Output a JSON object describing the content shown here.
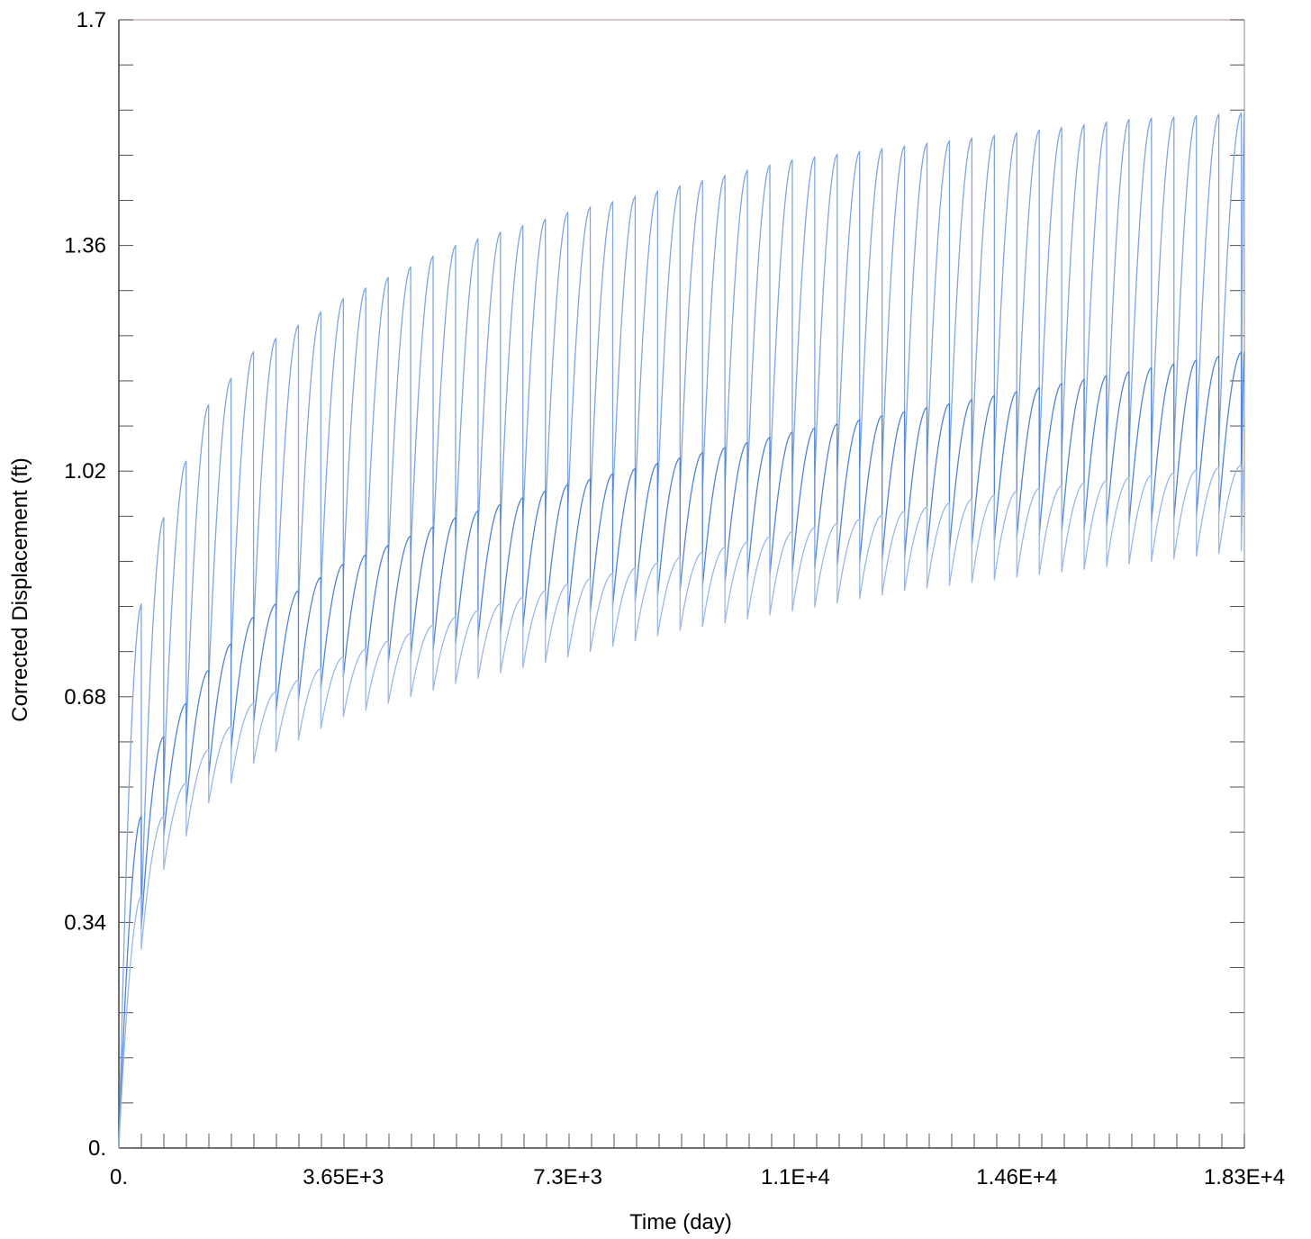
{
  "chart_data": {
    "type": "line",
    "title": "",
    "xlabel": "Time (day)",
    "ylabel": "Corrected Displacement (ft)",
    "xlim": [
      0,
      18300
    ],
    "ylim": [
      0,
      1.7
    ],
    "xticks": [
      0,
      3650,
      7300,
      11000,
      14600,
      18300
    ],
    "xtick_labels": [
      "0.",
      "3.65E+3",
      "7.3E+3",
      "1.1E+4",
      "1.46E+4",
      "1.83E+4"
    ],
    "yticks": [
      0,
      0.34,
      0.68,
      1.02,
      1.36,
      1.7
    ],
    "ytick_labels": [
      "0.",
      "0.34",
      "0.68",
      "1.02",
      "1.36",
      "1.7"
    ],
    "grid": false,
    "legend": "none",
    "cycle_length_days": 365,
    "series": [
      {
        "color": "#7fa6e0",
        "x": [
          0,
          365,
          730,
          1460,
          2190,
          3650,
          5475,
          7300,
          9125,
          11000,
          12775,
          14600,
          16425,
          18300
        ],
        "peak": [
          0.3,
          0.82,
          0.95,
          1.12,
          1.2,
          1.28,
          1.36,
          1.41,
          1.45,
          1.49,
          1.51,
          1.53,
          1.55,
          1.56
        ],
        "trough": [
          0.0,
          0.35,
          0.55,
          0.7,
          0.78,
          0.86,
          0.92,
          0.96,
          0.99,
          1.01,
          1.03,
          1.04,
          1.05,
          1.06
        ]
      },
      {
        "color": "#4f84d4",
        "x": [
          0,
          365,
          730,
          1460,
          2190,
          3650,
          5475,
          7300,
          9125,
          11000,
          12775,
          14600,
          16425,
          18300
        ],
        "peak": [
          0.15,
          0.5,
          0.62,
          0.72,
          0.8,
          0.88,
          0.95,
          1.0,
          1.04,
          1.08,
          1.11,
          1.14,
          1.17,
          1.2
        ],
        "trough": [
          0.0,
          0.33,
          0.47,
          0.56,
          0.64,
          0.71,
          0.76,
          0.8,
          0.84,
          0.87,
          0.89,
          0.92,
          0.94,
          0.96
        ]
      },
      {
        "color": "#9bb8e6",
        "x": [
          0,
          365,
          730,
          1460,
          2190,
          3650,
          5475,
          7300,
          9125,
          11000,
          12775,
          14600,
          16425,
          18300
        ],
        "peak": [
          0.12,
          0.38,
          0.5,
          0.6,
          0.67,
          0.74,
          0.8,
          0.85,
          0.89,
          0.93,
          0.96,
          0.99,
          1.01,
          1.03
        ],
        "trough": [
          0.0,
          0.3,
          0.42,
          0.52,
          0.58,
          0.65,
          0.7,
          0.74,
          0.78,
          0.81,
          0.84,
          0.86,
          0.88,
          0.9
        ]
      }
    ]
  }
}
